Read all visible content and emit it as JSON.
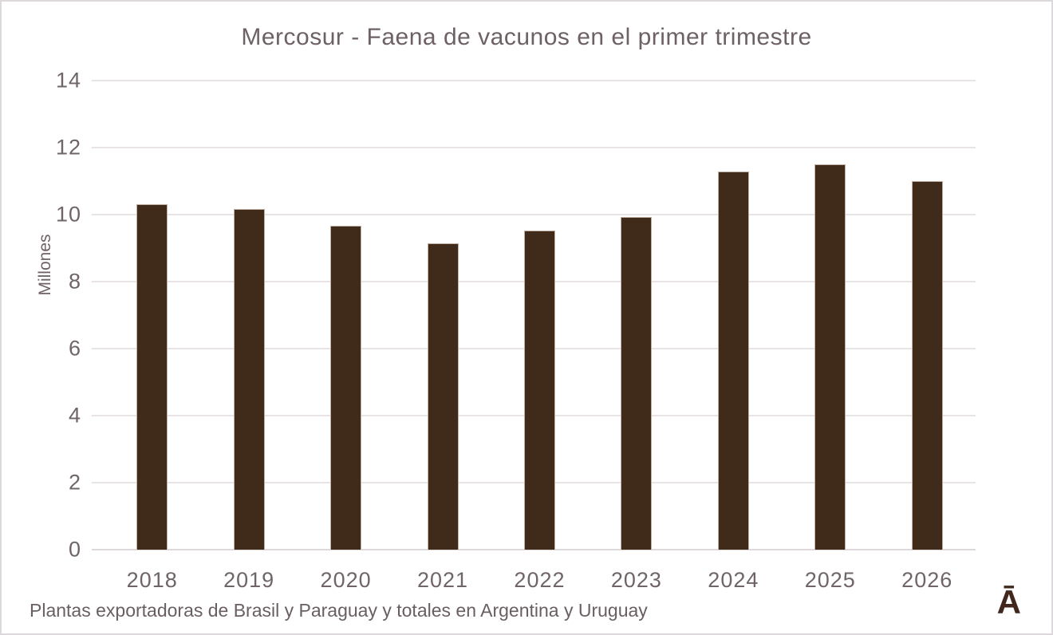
{
  "title": "Mercosur - Faena de vacunos en el primer trimestre",
  "footnote": "Plantas exportadoras de Brasil y Paraguay y totales en Argentina y Uruguay",
  "logo_text": "Ā",
  "colors": {
    "bar_fill": "#402a1a",
    "bar_edge": "#bfb0a3",
    "gridline": "#e8e4e6",
    "axis_text": "#6f6468",
    "title_text": "#6d6166",
    "logo": "#42281c",
    "canvas_border": "#dcd8dc",
    "background": "#ffffff"
  },
  "chart_data": {
    "type": "bar",
    "title": "Mercosur - Faena de vacunos en el primer trimestre",
    "categories": [
      "2018",
      "2019",
      "2020",
      "2021",
      "2022",
      "2023",
      "2024",
      "2025",
      "2026"
    ],
    "values": [
      10.32,
      10.17,
      9.67,
      9.15,
      9.52,
      9.93,
      11.28,
      11.51,
      11.0
    ],
    "xlabel": "",
    "ylabel": "Millones",
    "ylim": [
      0,
      14
    ],
    "yticks": [
      0,
      2,
      4,
      6,
      8,
      10,
      12,
      14
    ],
    "grid": true,
    "legend_position": "none"
  }
}
